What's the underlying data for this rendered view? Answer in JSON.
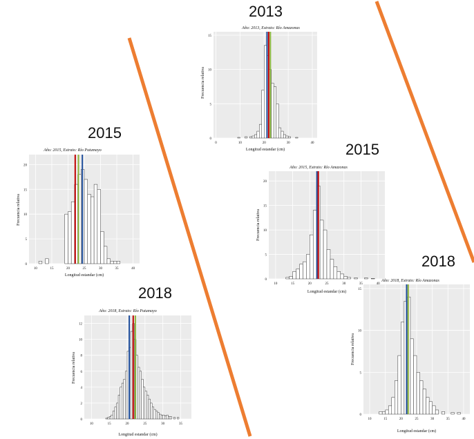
{
  "colors": {
    "slash": "#ED7D31",
    "red": "#C00000",
    "blue": "#1F4E9C",
    "green": "#8DB43C",
    "plot_bg": "#EBEBEB",
    "grid": "#FFFFFF",
    "bar_fill": "#FFFFFF",
    "bar_stroke": "#333333"
  },
  "chart_data": [
    {
      "id": "c2013",
      "type": "bar",
      "year_label": "2013",
      "title": "Año: 2013, Estrato: Río Amazonas",
      "xlabel": "Longitud estandar (cm)",
      "ylabel": "Frecuencia relativa",
      "xlim": [
        -1,
        42
      ],
      "ylim": [
        0,
        15.5
      ],
      "xticks": [
        0,
        10,
        20,
        30,
        40
      ],
      "yticks": [
        0,
        5,
        10,
        15
      ],
      "bin_width": 1,
      "bins": [
        [
          9,
          0.1
        ],
        [
          12,
          0.2
        ],
        [
          14,
          0.2
        ],
        [
          15,
          0.3
        ],
        [
          16,
          0.5
        ],
        [
          17,
          1.0
        ],
        [
          18,
          2.0
        ],
        [
          19,
          7.0
        ],
        [
          20,
          13.5
        ],
        [
          21,
          12.0
        ],
        [
          22,
          10.0
        ],
        [
          23,
          8.0
        ],
        [
          24,
          7.5
        ],
        [
          25,
          5.0
        ],
        [
          26,
          1.5
        ],
        [
          27,
          1.0
        ],
        [
          28,
          0.5
        ],
        [
          29,
          0.3
        ],
        [
          30,
          0.2
        ],
        [
          33,
          0.1
        ]
      ],
      "vlines": [
        {
          "x": 21.2,
          "color": "blue"
        },
        {
          "x": 21.9,
          "color": "red"
        },
        {
          "x": 22.6,
          "color": "green"
        }
      ]
    },
    {
      "id": "c2015a",
      "type": "bar",
      "year_label": "2015",
      "title": "Año: 2015, Estrato: Río Putumayo",
      "xlabel": "Longitud estandar (cm)",
      "ylabel": "Frecuencia relativa",
      "xlim": [
        8,
        42
      ],
      "ylim": [
        0,
        22
      ],
      "xticks": [
        10,
        15,
        20,
        25,
        30,
        35,
        40
      ],
      "yticks": [
        0,
        5,
        10,
        15,
        20
      ],
      "bin_width": 1,
      "bins": [
        [
          11,
          0.5
        ],
        [
          13,
          1.0
        ],
        [
          19,
          10.0
        ],
        [
          20,
          10.5
        ],
        [
          21,
          12.5
        ],
        [
          22,
          16.0
        ],
        [
          23,
          18.0
        ],
        [
          24,
          19.0
        ],
        [
          25,
          17.0
        ],
        [
          26,
          14.0
        ],
        [
          27,
          13.5
        ],
        [
          28,
          16.0
        ],
        [
          29,
          15.0
        ],
        [
          30,
          6.5
        ],
        [
          31,
          3.5
        ],
        [
          32,
          1.0
        ],
        [
          33,
          0.5
        ],
        [
          34,
          0.5
        ],
        [
          35,
          0.5
        ]
      ],
      "vlines": [
        {
          "x": 22.2,
          "color": "red"
        },
        {
          "x": 23.2,
          "color": "green"
        },
        {
          "x": 24.4,
          "color": "blue"
        }
      ]
    },
    {
      "id": "c2015b",
      "type": "bar",
      "year_label": "2015",
      "title": "Año: 2015, Estrato: Río Amazonas",
      "xlabel": "Longitud estandar (cm)",
      "ylabel": "Frecuencia relativa",
      "xlim": [
        8,
        42
      ],
      "ylim": [
        0,
        22
      ],
      "xticks": [
        10,
        15,
        20,
        25,
        30,
        35,
        40
      ],
      "yticks": [
        0,
        5,
        10,
        15,
        20
      ],
      "bin_width": 1,
      "bins": [
        [
          13,
          0.3
        ],
        [
          14,
          0.5
        ],
        [
          15,
          1.5
        ],
        [
          16,
          2.0
        ],
        [
          17,
          3.0
        ],
        [
          18,
          3.5
        ],
        [
          19,
          5.0
        ],
        [
          20,
          9.0
        ],
        [
          21,
          14.0
        ],
        [
          22,
          19.0
        ],
        [
          23,
          12.0
        ],
        [
          24,
          10.0
        ],
        [
          25,
          6.0
        ],
        [
          26,
          4.0
        ],
        [
          27,
          2.5
        ],
        [
          28,
          1.5
        ],
        [
          29,
          1.0
        ],
        [
          30,
          0.5
        ],
        [
          31,
          0.3
        ],
        [
          33,
          0.2
        ],
        [
          36,
          0.2
        ],
        [
          38,
          0.1
        ]
      ],
      "vlines": [
        {
          "x": 22.1,
          "color": "blue"
        },
        {
          "x": 22.5,
          "color": "red"
        }
      ]
    },
    {
      "id": "c2018a",
      "type": "bar",
      "year_label": "2018",
      "title": "Año: 2018, Estrato: Río Putumayo",
      "xlabel": "Longitud estandar (cm)",
      "ylabel": "Frecuencia relativa",
      "xlim": [
        8,
        38
      ],
      "ylim": [
        0,
        13
      ],
      "xticks": [
        10,
        15,
        20,
        25,
        30,
        35
      ],
      "yticks": [
        0,
        2,
        4,
        6,
        8,
        10,
        12
      ],
      "bin_width": 0.5,
      "bins": [
        [
          14,
          0.1
        ],
        [
          14.5,
          0.2
        ],
        [
          15,
          0.3
        ],
        [
          15.5,
          0.5
        ],
        [
          16,
          1.0
        ],
        [
          16.5,
          1.5
        ],
        [
          17,
          2.0
        ],
        [
          17.5,
          3.0
        ],
        [
          18,
          4.0
        ],
        [
          18.5,
          4.5
        ],
        [
          19,
          5.0
        ],
        [
          19.5,
          6.0
        ],
        [
          20,
          8.5
        ],
        [
          20.5,
          9.0
        ],
        [
          21,
          11.0
        ],
        [
          21.5,
          12.0
        ],
        [
          22,
          10.0
        ],
        [
          22.5,
          8.0
        ],
        [
          23,
          6.5
        ],
        [
          23.5,
          6.0
        ],
        [
          24,
          5.0
        ],
        [
          24.5,
          4.0
        ],
        [
          25,
          3.5
        ],
        [
          25.5,
          3.0
        ],
        [
          26,
          2.5
        ],
        [
          26.5,
          2.0
        ],
        [
          27,
          1.5
        ],
        [
          27.5,
          1.2
        ],
        [
          28,
          1.0
        ],
        [
          28.5,
          0.8
        ],
        [
          29,
          0.6
        ],
        [
          29.5,
          0.5
        ],
        [
          30,
          0.5
        ],
        [
          30.5,
          0.4
        ],
        [
          31,
          0.5
        ],
        [
          31.5,
          0.3
        ],
        [
          32,
          0.3
        ],
        [
          33,
          0.2
        ],
        [
          34,
          0.2
        ]
      ],
      "vlines": [
        {
          "x": 20.6,
          "color": "blue"
        },
        {
          "x": 21.7,
          "color": "red"
        },
        {
          "x": 22.3,
          "color": "green"
        }
      ]
    },
    {
      "id": "c2018b",
      "type": "bar",
      "year_label": "2018",
      "title": "Año: 2018, Estrato: Río Amazonas",
      "xlabel": "Longitud estandar (cm)",
      "ylabel": "Frecuencia relativa",
      "xlim": [
        8,
        42
      ],
      "ylim": [
        0,
        15.5
      ],
      "xticks": [
        10,
        15,
        20,
        25,
        30,
        35,
        40
      ],
      "yticks": [
        0,
        5,
        10,
        15
      ],
      "bin_width": 1,
      "bins": [
        [
          13,
          0.3
        ],
        [
          14,
          0.3
        ],
        [
          15,
          0.5
        ],
        [
          16,
          1.0
        ],
        [
          17,
          2.0
        ],
        [
          18,
          4.0
        ],
        [
          19,
          7.0
        ],
        [
          20,
          11.0
        ],
        [
          21,
          13.5
        ],
        [
          22,
          14.0
        ],
        [
          23,
          9.0
        ],
        [
          24,
          7.0
        ],
        [
          25,
          5.0
        ],
        [
          26,
          4.0
        ],
        [
          27,
          3.0
        ],
        [
          28,
          2.0
        ],
        [
          29,
          1.5
        ],
        [
          30,
          1.0
        ],
        [
          31,
          0.5
        ],
        [
          33,
          0.3
        ],
        [
          36,
          0.2
        ],
        [
          38,
          0.2
        ]
      ],
      "vlines": [
        {
          "x": 21.8,
          "color": "blue"
        },
        {
          "x": 22.3,
          "color": "green"
        }
      ]
    }
  ]
}
